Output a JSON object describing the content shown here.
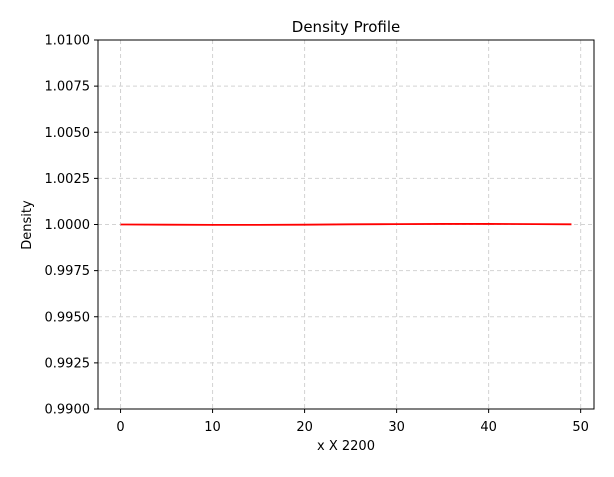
{
  "chart_data": {
    "type": "line",
    "title": "Density Profile",
    "xlabel": "x X 2200",
    "ylabel": "Density",
    "xlim": [
      -2.45,
      51.45
    ],
    "ylim": [
      0.99,
      1.01
    ],
    "x_ticks": [
      0,
      10,
      20,
      30,
      40,
      50
    ],
    "y_ticks": [
      0.99,
      0.9925,
      0.995,
      0.9975,
      1.0,
      1.0025,
      1.005,
      1.0075,
      1.01
    ],
    "x_tick_labels": [
      "0",
      "10",
      "20",
      "30",
      "40",
      "50"
    ],
    "y_tick_labels": [
      "0.9900",
      "0.9925",
      "0.9950",
      "0.9975",
      "1.0000",
      "1.0025",
      "1.0050",
      "1.0075",
      "1.0100"
    ],
    "grid": true,
    "colors": {
      "line": "#ff0000",
      "grid": "#d3d3d3",
      "axis": "#000000"
    },
    "series": [
      {
        "x": [
          0,
          5,
          10,
          15,
          20,
          25,
          30,
          35,
          40,
          45,
          49
        ],
        "values": [
          1.0,
          0.99999,
          0.99998,
          0.99998,
          0.99999,
          1.00001,
          1.00002,
          1.00003,
          1.00003,
          1.00002,
          1.00001
        ]
      }
    ]
  }
}
